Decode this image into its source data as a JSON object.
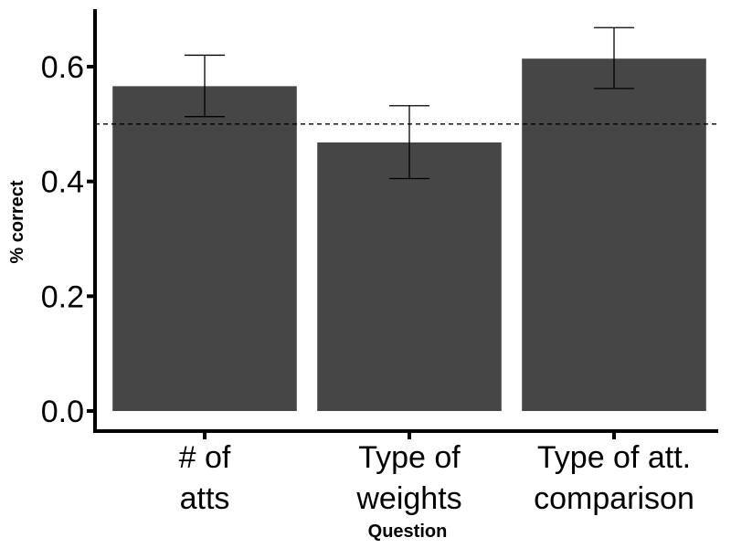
{
  "chart_data": {
    "type": "bar",
    "categories": [
      [
        "# of",
        "atts"
      ],
      [
        "Type of",
        "weights"
      ],
      [
        "Type of att.",
        "comparison"
      ]
    ],
    "values": [
      0.566,
      0.468,
      0.614
    ],
    "error_low": [
      0.513,
      0.405,
      0.562
    ],
    "error_high": [
      0.62,
      0.532,
      0.668
    ],
    "reference_line": 0.5,
    "xlabel": "Question",
    "ylabel": "% correct",
    "ylim": [
      0,
      0.7
    ],
    "yticks": [
      0.0,
      0.2,
      0.4,
      0.6
    ],
    "ytick_labels": [
      "0.0",
      "0.2",
      "0.4",
      "0.6"
    ],
    "bar_color": "#464646",
    "grid": false,
    "legend": "none"
  }
}
